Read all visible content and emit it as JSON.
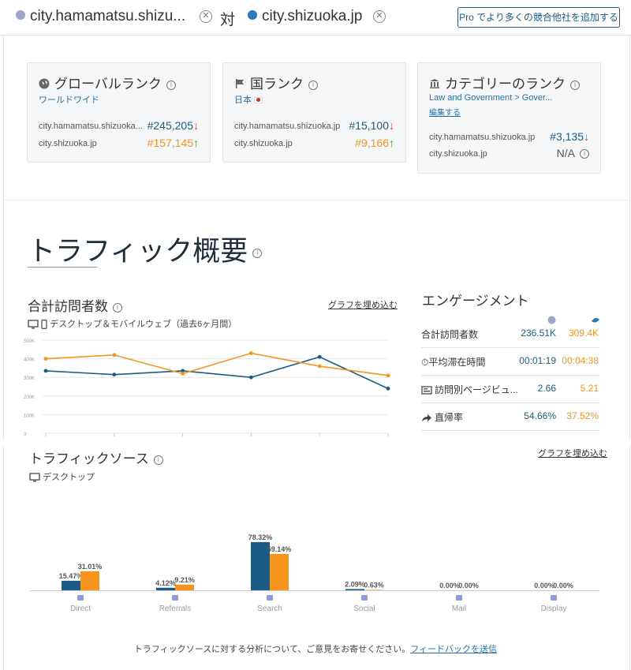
{
  "header": {
    "site1": "city.hamamatsu.shizu...",
    "vs": "対",
    "site2": "city.shizuoka.jp",
    "pro_button": "Pro でより多くの競合他社を追加する"
  },
  "ranks": [
    {
      "title": "グローバルランク",
      "sub": "ワールドワイド",
      "icon": "globe-icon",
      "rows": [
        {
          "site": "city.hamamatsu.shizuoka...",
          "value": "#245,205",
          "trend": "down"
        },
        {
          "site": "city.shizuoka.jp",
          "value": "#157,145",
          "trend": "up"
        }
      ]
    },
    {
      "title": "国ランク",
      "sub": "日本",
      "icon": "flag-icon",
      "rows": [
        {
          "site": "city.hamamatsu.shizuoka.jp",
          "value": "#15,100",
          "trend": "down"
        },
        {
          "site": "city.shizuoka.jp",
          "value": "#9,166",
          "trend": "up"
        }
      ]
    },
    {
      "title": "カテゴリーのランク",
      "sub": "Law and Government > Gover...",
      "edit": "編集する",
      "icon": "building-icon",
      "rows": [
        {
          "site": "city.hamamatsu.shizuoka.jp",
          "value": "#3,135",
          "trend": "down"
        },
        {
          "site": "city.shizuoka.jp",
          "value": "N/A",
          "trend": "none"
        }
      ]
    }
  ],
  "overview": {
    "title": "トラフィック概要",
    "visits_title": "合計訪問者数",
    "embed": "グラフを埋め込む",
    "device": "デスクトップ＆モバイルウェブ（過去6ヶ月間）",
    "engagement_title": "エンゲージメント",
    "engagement": [
      {
        "label": "合計訪問者数",
        "v1": "236.51K",
        "v2": "309.4K",
        "icon": ""
      },
      {
        "label": "平均滞在時間",
        "v1": "00:01:19",
        "v2": "00:04:38",
        "icon": "stopwatch-icon"
      },
      {
        "label": "訪問別ページビュ...",
        "v1": "2.66",
        "v2": "5.21",
        "icon": "pages-icon"
      },
      {
        "label": "直帰率",
        "v1": "54.66%",
        "v2": "37.52%",
        "icon": "bounce-arrow-icon"
      }
    ]
  },
  "sources": {
    "title": "トラフィックソース",
    "device": "デスクトップ",
    "embed": "グラフを埋め込む",
    "feedback_text": "トラフィックソースに対する分析について、ご意見をお寄せください。",
    "feedback_link": "フィードバックを送信"
  },
  "colors": {
    "site1": "#1a5c86",
    "site2": "#f7941d"
  },
  "chart_data": [
    {
      "type": "line",
      "title": "合計訪問者数",
      "ylim": [
        0,
        500000
      ],
      "y_ticks": [
        "0",
        "100K",
        "200K",
        "300K",
        "400K",
        "500K"
      ],
      "x": [
        1,
        2,
        3,
        4,
        5,
        6
      ],
      "series": [
        {
          "values": [
            335000,
            315000,
            335000,
            300000,
            410000,
            240000
          ]
        },
        {
          "values": [
            400000,
            420000,
            320000,
            430000,
            360000,
            310000
          ]
        }
      ],
      "grid": true
    },
    {
      "type": "bar",
      "title": "トラフィックソース",
      "categories": [
        "Direct",
        "Referrals",
        "Search",
        "Social",
        "Mail",
        "Display"
      ],
      "category_icons": [
        "direct-icon",
        "referrals-icon",
        "search-icon",
        "social-icon",
        "mail-icon",
        "display-icon"
      ],
      "series": [
        {
          "values": [
            15.47,
            4.12,
            78.32,
            2.09,
            0.0,
            0.0
          ],
          "labels": [
            "15.47%",
            "4.12%",
            "78.32%",
            "2.09%",
            "0.00%",
            "0.00%"
          ]
        },
        {
          "values": [
            31.01,
            9.21,
            59.14,
            0.63,
            0.0,
            0.0
          ],
          "labels": [
            "31.01%",
            "9.21%",
            "59.14%",
            "0.63%",
            "0.00%",
            "0.00%"
          ]
        }
      ],
      "ylim": [
        0,
        100
      ]
    }
  ]
}
